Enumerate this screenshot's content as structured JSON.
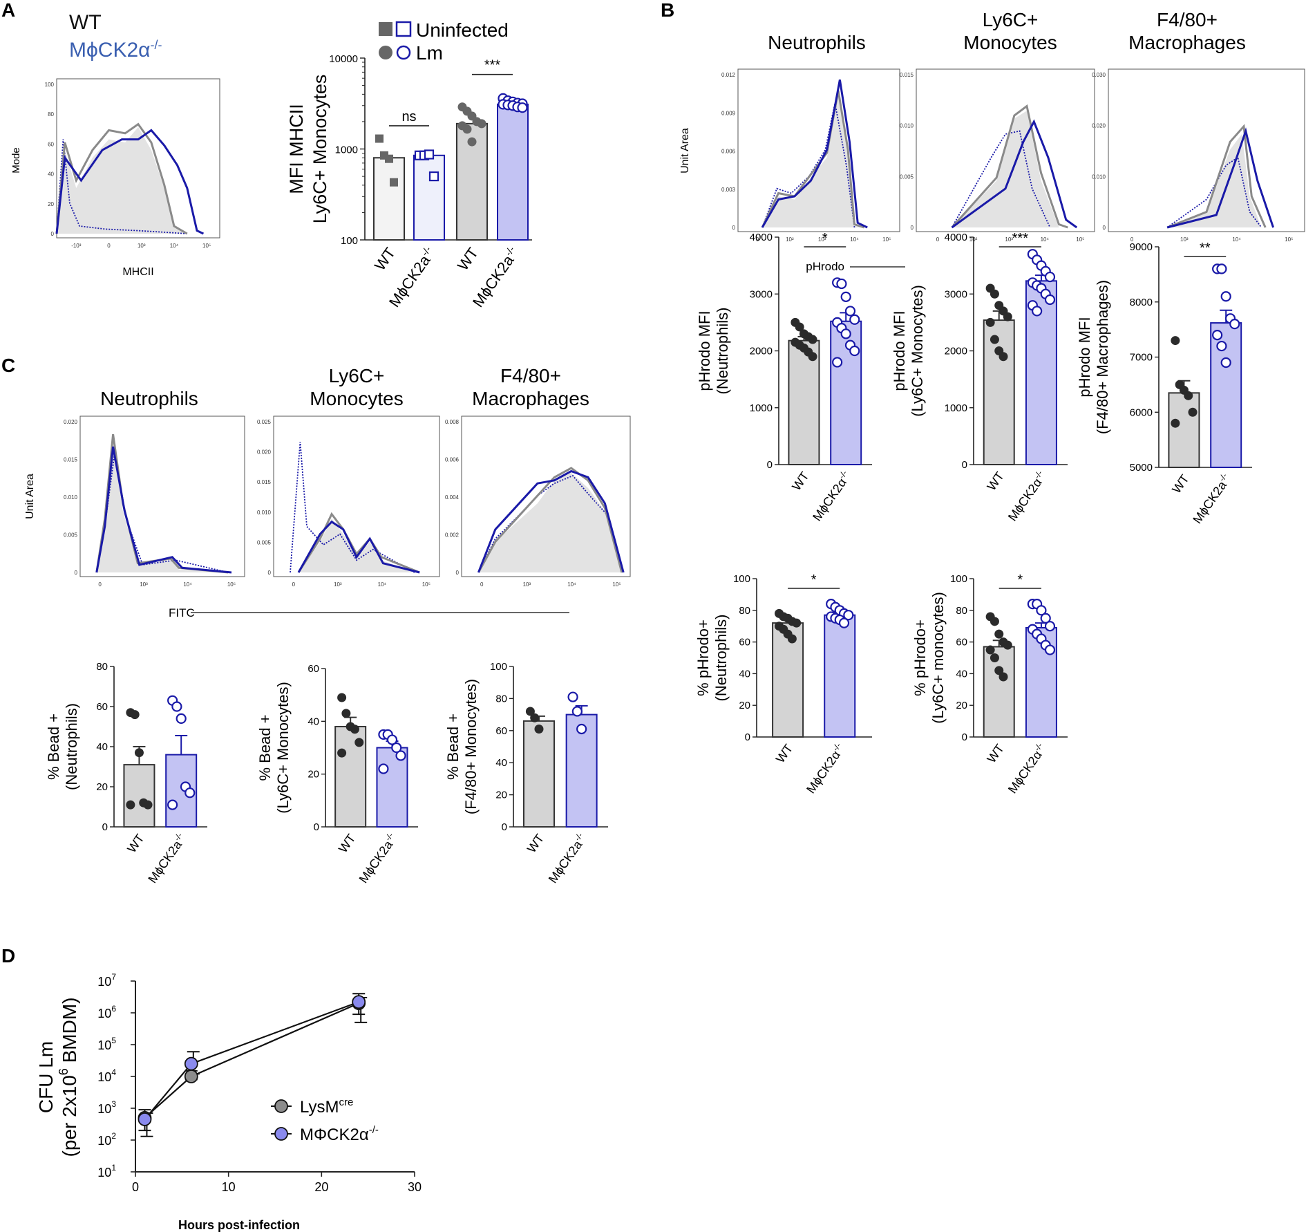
{
  "chart_data": {
    "panel_labels": {
      "A": "A",
      "B": "B",
      "C": "C",
      "D": "D"
    },
    "genotype_legend": {
      "wt": "WT",
      "ko": "MϕCK2α",
      "ko_sup": "-/-",
      "wt_color": "#111111",
      "ko_color": "#3a5fb0"
    },
    "colors": {
      "wt_fill": "#d4d4d4",
      "ko_fill": "#c3c3f3",
      "ko_edge": "#1a1aa8",
      "wt_dot": "#2b2b2b",
      "wt_histo": "#8a8a8a",
      "histo_fill": "#e3e3e3"
    },
    "histograms": [
      {
        "id": "A-mhcii",
        "type": "histogram",
        "ylabel": "Mode",
        "xlabel": "MHCII",
        "yticks": [
          "100",
          "80",
          "60",
          "40",
          "20",
          "0"
        ],
        "xticks": [
          "-10³",
          "0",
          "10³",
          "10⁴",
          "10⁵"
        ]
      },
      {
        "id": "B-neutrophils",
        "type": "histogram",
        "title": [
          "Neutrophils"
        ],
        "ylabel": "Unit Area",
        "xlabel": "pHrodo",
        "yticks": [
          "0.012",
          "0.009",
          "0.006",
          "0.003",
          "0"
        ],
        "xticks": [
          "0",
          "10²",
          "10³",
          "10⁴",
          "10⁵"
        ]
      },
      {
        "id": "B-monocytes",
        "type": "histogram",
        "title": [
          "Ly6C+",
          "Monocytes"
        ],
        "yticks": [
          "0.015",
          "0.010",
          "0.005",
          "0"
        ],
        "xticks": [
          "0",
          "10²",
          "10³",
          "10⁴",
          "10⁵"
        ]
      },
      {
        "id": "B-macrophages",
        "type": "histogram",
        "title": [
          "F4/80+",
          "Macrophages"
        ],
        "yticks": [
          "0.030",
          "0.020",
          "0.010",
          "0"
        ],
        "xticks": [
          "0",
          "10³",
          "10⁴",
          "10⁵"
        ]
      },
      {
        "id": "C-neutrophils",
        "type": "histogram",
        "title": [
          "Neutrophils"
        ],
        "ylabel": "Unit Area",
        "xlabel": "FITC",
        "yticks": [
          "0.020",
          "0.015",
          "0.010",
          "0.005",
          "0"
        ],
        "xticks": [
          "0",
          "10³",
          "10⁴",
          "10⁵"
        ]
      },
      {
        "id": "C-monocytes",
        "type": "histogram",
        "title": [
          "Ly6C+",
          "Monocytes"
        ],
        "yticks": [
          "0.025",
          "0.020",
          "0.015",
          "0.010",
          "0.005",
          "0"
        ],
        "xticks": [
          "0",
          "10³",
          "10⁴",
          "10⁵"
        ]
      },
      {
        "id": "C-macrophages",
        "type": "histogram",
        "title": [
          "F4/80+",
          "Macrophages"
        ],
        "yticks": [
          "0.008",
          "0.006",
          "0.004",
          "0.002",
          "0"
        ],
        "xticks": [
          "0",
          "10³",
          "10⁴",
          "10⁵"
        ]
      }
    ],
    "panel_A_bar": {
      "type": "bar",
      "scale": "log",
      "ylim": [
        100,
        10000
      ],
      "yticks": [
        "100",
        "1000",
        "10000"
      ],
      "ylabel": [
        "MFI MHCII",
        "Ly6C+ Monocytes"
      ],
      "legend": [
        {
          "label": "Uninfected",
          "markers": "square"
        },
        {
          "label": "Lm",
          "markers": "circle"
        }
      ],
      "categories": [
        "WT",
        "MϕCK2a"
      ],
      "cat_sup": "-/-",
      "groups": [
        {
          "name": "Uninfected WT",
          "mean": 800,
          "points": [
            1300,
            850,
            780,
            430
          ]
        },
        {
          "name": "Uninfected MϕCK2a-/-",
          "mean": 850,
          "points": [
            850,
            850,
            870,
            500
          ]
        },
        {
          "name": "Lm WT",
          "mean": 1900,
          "points": [
            2900,
            2600,
            2300,
            2000,
            1900,
            1800,
            1650,
            1200
          ]
        },
        {
          "name": "Lm MϕCK2a-/-",
          "mean": 3100,
          "points": [
            3600,
            3400,
            3300,
            3200,
            3150,
            3100,
            3050,
            3000,
            2900,
            2850
          ]
        }
      ],
      "comparisons": [
        {
          "label": "ns"
        },
        {
          "label": "***"
        }
      ]
    },
    "bar_panels": [
      {
        "id": "B-pHrodo-neutrophils",
        "type": "bar",
        "ylim": [
          0,
          4000
        ],
        "yticks": [
          "0",
          "1000",
          "2000",
          "3000",
          "4000"
        ],
        "ylabel": [
          "pHrodo MFI",
          "(Neutrophils)"
        ],
        "categories": [
          "WT",
          "MϕCK2α"
        ],
        "sig": "*",
        "wt": {
          "mean": 2180,
          "sem": 70,
          "points": [
            2500,
            2420,
            2300,
            2250,
            2200,
            2150,
            2100,
            2050,
            1980,
            1900
          ]
        },
        "ko": {
          "mean": 2520,
          "sem": 150,
          "points": [
            3200,
            3180,
            2950,
            2700,
            2550,
            2500,
            2400,
            2300,
            2100,
            2000,
            1800
          ]
        }
      },
      {
        "id": "B-pHrodo-monocytes",
        "type": "bar",
        "ylim": [
          0,
          4000
        ],
        "yticks": [
          "0",
          "1000",
          "2000",
          "3000",
          "4000"
        ],
        "ylabel": [
          "pHrodo MFI",
          "(Ly6C+ Monocytes)"
        ],
        "categories": [
          "WT",
          "MϕCK2α"
        ],
        "sig": "***",
        "wt": {
          "mean": 2540,
          "sem": 160,
          "points": [
            3100,
            3000,
            2800,
            2700,
            2600,
            2500,
            2200,
            2000,
            1900
          ]
        },
        "ko": {
          "mean": 3230,
          "sem": 100,
          "points": [
            3700,
            3600,
            3500,
            3400,
            3300,
            3200,
            3150,
            3100,
            3000,
            2900,
            2800,
            2700
          ]
        }
      },
      {
        "id": "B-pHrodo-macrophages",
        "type": "bar",
        "ylim": [
          5000,
          9000
        ],
        "yticks": [
          "5000",
          "6000",
          "7000",
          "8000",
          "9000"
        ],
        "ylabel": [
          "pHrodo MFI",
          "(F4/80+  Macrophages)"
        ],
        "categories": [
          "WT",
          "MϕCK2a"
        ],
        "sig": "**",
        "wt": {
          "mean": 6350,
          "sem": 220,
          "points": [
            7300,
            6500,
            6400,
            6300,
            6000,
            5800
          ]
        },
        "ko": {
          "mean": 7620,
          "sem": 230,
          "points": [
            8600,
            8600,
            8100,
            7700,
            7600,
            7400,
            7200,
            6900
          ]
        }
      },
      {
        "id": "B-pct-neutrophils",
        "type": "bar",
        "ylim": [
          0,
          100
        ],
        "yticks": [
          "0",
          "20",
          "40",
          "60",
          "80",
          "100"
        ],
        "ylabel": [
          "% pHrodo+",
          "(Neutrophils)"
        ],
        "categories": [
          "WT",
          "MϕCK2α"
        ],
        "sig": "*",
        "wt": {
          "mean": 72,
          "sem": 2,
          "points": [
            78,
            76,
            75,
            73,
            72,
            70,
            68,
            65,
            62
          ]
        },
        "ko": {
          "mean": 77,
          "sem": 1.5,
          "points": [
            84,
            82,
            80,
            78,
            77,
            76,
            75,
            74,
            72
          ]
        }
      },
      {
        "id": "B-pct-monocytes",
        "type": "bar",
        "ylim": [
          0,
          100
        ],
        "yticks": [
          "0",
          "20",
          "40",
          "60",
          "80",
          "100"
        ],
        "ylabel": [
          "% pHrodo+",
          "(Ly6C+ monocytes)"
        ],
        "categories": [
          "WT",
          "MϕCK2α"
        ],
        "sig": "*",
        "wt": {
          "mean": 57,
          "sem": 4,
          "points": [
            76,
            73,
            65,
            60,
            58,
            55,
            50,
            42,
            38
          ]
        },
        "ko": {
          "mean": 69,
          "sem": 3,
          "points": [
            84,
            84,
            80,
            75,
            70,
            68,
            65,
            62,
            58,
            55
          ]
        }
      },
      {
        "id": "C-bead-neutrophils",
        "type": "bar",
        "ylim": [
          0,
          80
        ],
        "yticks": [
          "0",
          "20",
          "40",
          "60",
          "80"
        ],
        "ylabel": [
          "% Bead +",
          "(Neutrophils)"
        ],
        "categories": [
          "WT",
          "MϕCK2a"
        ],
        "wt": {
          "mean": 31,
          "sem": 9,
          "points": [
            57,
            56,
            37,
            12,
            11,
            11
          ]
        },
        "ko": {
          "mean": 36,
          "sem": 9.5,
          "points": [
            63,
            60,
            54,
            20,
            17,
            11
          ]
        }
      },
      {
        "id": "C-bead-monocytes",
        "type": "bar",
        "ylim": [
          0,
          60
        ],
        "yticks": [
          "0",
          "20",
          "40",
          "60"
        ],
        "ylabel": [
          "% Bead +",
          "(Ly6C+ Monocytes)"
        ],
        "categories": [
          "WT",
          "MϕCK2a"
        ],
        "wt": {
          "mean": 38,
          "sem": 3.5,
          "points": [
            49,
            43,
            38,
            37,
            32,
            28
          ]
        },
        "ko": {
          "mean": 30,
          "sem": 2.5,
          "points": [
            35,
            35,
            33,
            30,
            27,
            22
          ]
        }
      },
      {
        "id": "C-bead-macrophages",
        "type": "bar",
        "ylim": [
          0,
          100
        ],
        "yticks": [
          "0",
          "20",
          "40",
          "60",
          "80",
          "100"
        ],
        "ylabel": [
          "% Bead +",
          "(F4/80+ Monocytes)"
        ],
        "categories": [
          "WT",
          "MϕCK2a"
        ],
        "wt": {
          "mean": 66,
          "sem": 3,
          "points": [
            72,
            68,
            61
          ]
        },
        "ko": {
          "mean": 70,
          "sem": 5.5,
          "points": [
            81,
            72,
            61
          ]
        }
      }
    ],
    "panel_D": {
      "type": "line",
      "scale": "log",
      "xlabel": "Hours post-infection",
      "ylabel": [
        "CFU Lm",
        "(per 2x10",
        "6",
        " BMDM)"
      ],
      "xlim": [
        0,
        30
      ],
      "xticks": [
        "0",
        "10",
        "20",
        "30"
      ],
      "ylim_exp": [
        1,
        7
      ],
      "yticks_exp": [
        "1",
        "2",
        "3",
        "4",
        "5",
        "6",
        "7"
      ],
      "series": [
        {
          "name": "LysM",
          "sup": "cre",
          "color": "#8c8c8c",
          "x": [
            1,
            6,
            24
          ],
          "y": [
            500,
            10000,
            2000000
          ],
          "err_hi": [
            900,
            15000,
            4000000
          ],
          "err_lo": [
            200,
            8000,
            900000
          ]
        },
        {
          "name": "MΦCK2α",
          "sup": "-/-",
          "color": "#8a8aee",
          "x": [
            1,
            6,
            24
          ],
          "y": [
            450,
            25000,
            2200000
          ],
          "err_hi": [
            700,
            60000,
            3000000
          ],
          "err_lo": [
            130,
            12000,
            500000
          ]
        }
      ]
    }
  }
}
